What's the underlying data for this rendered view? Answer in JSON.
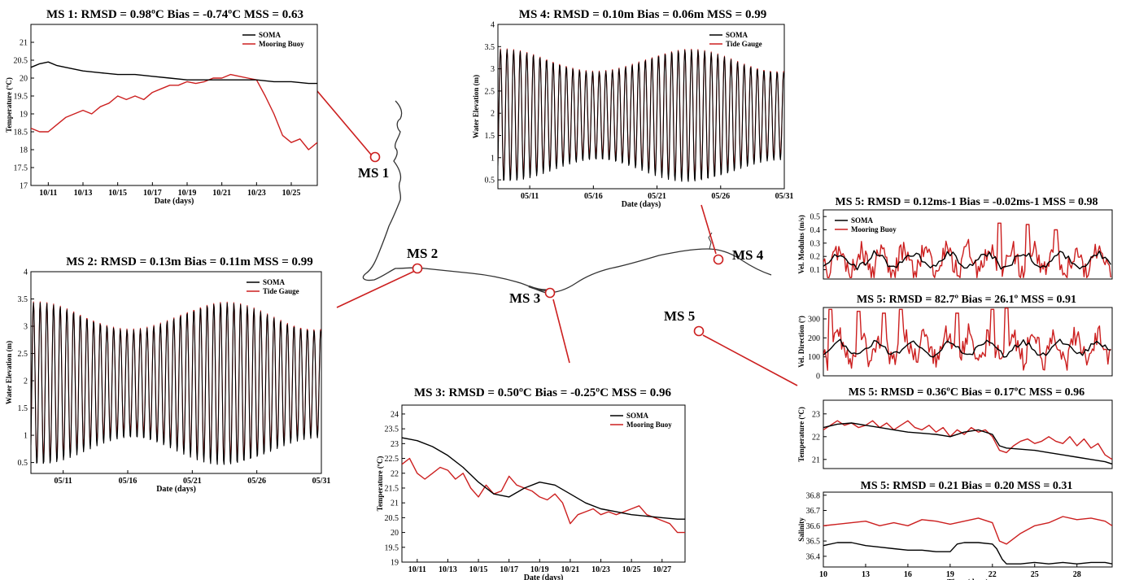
{
  "colors": {
    "model": "#000000",
    "obs": "#cc1f1f",
    "marker": "#cc1f1f",
    "coast": "#333333"
  },
  "map": {
    "labels": [
      {
        "id": "ms1",
        "text": "MS 1"
      },
      {
        "id": "ms2",
        "text": "MS 2"
      },
      {
        "id": "ms3",
        "text": "MS 3"
      },
      {
        "id": "ms4",
        "text": "MS 4"
      },
      {
        "id": "ms5",
        "text": "MS 5"
      }
    ]
  },
  "chart_data": [
    {
      "id": "ms1",
      "type": "line",
      "title": "MS 1:  RMSD = 0.98ºC  Bias = -0.74ºC   MSS = 0.63",
      "xlabel": "Date (days)",
      "ylabel": "Temperature (ºC)",
      "xlim": [
        10,
        26.5
      ],
      "ylim": [
        17,
        21.5
      ],
      "xticks": [
        11,
        13,
        15,
        17,
        19,
        21,
        23,
        25
      ],
      "xticklabels": [
        "10/11",
        "10/13",
        "10/15",
        "10/17",
        "10/19",
        "10/21",
        "10/23",
        "10/25"
      ],
      "yticks": [
        17,
        17.5,
        18,
        18.5,
        19,
        19.5,
        20,
        20.5,
        21
      ],
      "legend": "top-right",
      "series": [
        {
          "name": "SOMA",
          "role": "model",
          "x": [
            10,
            10.5,
            11,
            11.5,
            12,
            13,
            14,
            15,
            16,
            17,
            18,
            19,
            20,
            21,
            22,
            23,
            24,
            25,
            26,
            26.5
          ],
          "y": [
            20.3,
            20.4,
            20.45,
            20.35,
            20.3,
            20.2,
            20.15,
            20.1,
            20.1,
            20.05,
            20.0,
            19.95,
            19.95,
            19.95,
            19.95,
            19.95,
            19.9,
            19.9,
            19.85,
            19.85
          ]
        },
        {
          "name": "Mooring Buoy",
          "role": "obs",
          "x": [
            10,
            10.5,
            11,
            11.5,
            12,
            12.5,
            13,
            13.5,
            14,
            14.5,
            15,
            15.5,
            16,
            16.5,
            17,
            17.5,
            18,
            18.5,
            19,
            19.5,
            20,
            20.5,
            21,
            21.5,
            22,
            22.5,
            23,
            23.5,
            24,
            24.5,
            25,
            25.5,
            26,
            26.5
          ],
          "y": [
            18.6,
            18.5,
            18.5,
            18.7,
            18.9,
            19.0,
            19.1,
            19.0,
            19.2,
            19.3,
            19.5,
            19.4,
            19.5,
            19.4,
            19.6,
            19.7,
            19.8,
            19.8,
            19.9,
            19.85,
            19.9,
            20.0,
            20.0,
            20.1,
            20.05,
            20.0,
            19.95,
            19.5,
            19.0,
            18.4,
            18.2,
            18.3,
            18.0,
            18.2
          ]
        }
      ]
    },
    {
      "id": "ms4",
      "type": "line",
      "title": "MS 4:  RMSD = 0.10m  Bias = 0.06m    MSS = 0.99",
      "xlabel": "Date (days)",
      "ylabel": "Water Elevation (m)",
      "xlim": [
        8.5,
        31
      ],
      "ylim": [
        0.3,
        4
      ],
      "xticks": [
        11,
        16,
        21,
        26,
        31
      ],
      "xticklabels": [
        "05/11",
        "05/16",
        "05/21",
        "05/26",
        "05/31"
      ],
      "yticks": [
        0.5,
        1,
        1.5,
        2,
        2.5,
        3,
        3.5,
        4
      ],
      "legend": "top-right",
      "tide": {
        "mean": 2.0,
        "amp_max": 1.45,
        "amp_min": 0.95,
        "spring": [
          9,
          23
        ],
        "period_days": 0.5175
      },
      "series": [
        {
          "name": "SOMA",
          "role": "model"
        },
        {
          "name": "Tide Gauge",
          "role": "obs"
        }
      ]
    },
    {
      "id": "ms2",
      "type": "line",
      "title": "MS 2:  RMSD = 0.13m   Bias = 0.11m   MSS = 0.99",
      "xlabel": "Date (days)",
      "ylabel": "Water Elevation (m)",
      "xlim": [
        8.5,
        31
      ],
      "ylim": [
        0.3,
        4
      ],
      "xticks": [
        11,
        16,
        21,
        26,
        31
      ],
      "xticklabels": [
        "05/11",
        "05/16",
        "05/21",
        "05/26",
        "05/31"
      ],
      "yticks": [
        0.5,
        1,
        1.5,
        2,
        2.5,
        3,
        3.5,
        4
      ],
      "legend": "top-right",
      "tide": {
        "mean": 2.0,
        "amp_max": 1.45,
        "amp_min": 0.95,
        "spring": [
          9,
          23
        ],
        "period_days": 0.5175
      },
      "series": [
        {
          "name": "SOMA",
          "role": "model"
        },
        {
          "name": "Tide Gauge",
          "role": "obs"
        }
      ]
    },
    {
      "id": "ms3",
      "type": "line",
      "title": "MS 3:  RMSD = 0.50ºC  Bias = -0.25ºC   MSS = 0.96",
      "xlabel": "Date (days)",
      "ylabel": "Temperature (ºC)",
      "xlim": [
        10,
        28.5
      ],
      "ylim": [
        19,
        24.3
      ],
      "xticks": [
        11,
        13,
        15,
        17,
        19,
        21,
        23,
        25,
        27
      ],
      "xticklabels": [
        "10/11",
        "10/13",
        "10/15",
        "10/17",
        "10/19",
        "10/21",
        "10/23",
        "10/25",
        "10/27"
      ],
      "yticks": [
        19,
        19.5,
        20,
        20.5,
        21,
        21.5,
        22,
        22.5,
        23,
        23.5,
        24
      ],
      "legend": "top-right",
      "series": [
        {
          "name": "SOMA",
          "role": "model",
          "x": [
            10,
            11,
            12,
            13,
            14,
            15,
            16,
            17,
            18,
            19,
            20,
            21,
            22,
            23,
            24,
            25,
            26,
            27,
            28,
            28.5
          ],
          "y": [
            23.2,
            23.1,
            22.9,
            22.6,
            22.2,
            21.7,
            21.3,
            21.2,
            21.5,
            21.7,
            21.6,
            21.3,
            21.0,
            20.8,
            20.7,
            20.6,
            20.55,
            20.5,
            20.45,
            20.45
          ]
        },
        {
          "name": "Mooring Buoy",
          "role": "obs",
          "x": [
            10,
            10.5,
            11,
            11.5,
            12,
            12.5,
            13,
            13.5,
            14,
            14.5,
            15,
            15.5,
            16,
            16.5,
            17,
            17.5,
            18,
            18.5,
            19,
            19.5,
            20,
            20.5,
            21,
            21.5,
            22,
            22.5,
            23,
            23.5,
            24,
            24.5,
            25,
            25.5,
            26,
            26.5,
            27,
            27.5,
            28,
            28.5
          ],
          "y": [
            22.3,
            22.5,
            22.0,
            21.8,
            22.0,
            22.2,
            22.1,
            21.8,
            22.0,
            21.5,
            21.2,
            21.6,
            21.3,
            21.4,
            21.9,
            21.6,
            21.5,
            21.4,
            21.2,
            21.1,
            21.3,
            21.0,
            20.3,
            20.6,
            20.7,
            20.8,
            20.6,
            20.7,
            20.6,
            20.7,
            20.8,
            20.9,
            20.6,
            20.5,
            20.4,
            20.3,
            20.0,
            20.0
          ]
        }
      ]
    },
    {
      "id": "ms5a",
      "type": "line",
      "title": "MS 5: RMSD = 0.12ms-1  Bias = -0.02ms-1  MSS = 0.98",
      "xlabel": "",
      "ylabel": "Vel. Modulus (m/s)",
      "xlim": [
        10,
        30.5
      ],
      "ylim": [
        0.03,
        0.55
      ],
      "xticks": [],
      "xticklabels": [],
      "yticks": [
        0.1,
        0.2,
        0.3,
        0.4,
        0.5
      ],
      "legend": "top-left",
      "noisy": {
        "model_mean": 0.17,
        "model_amp": 0.09,
        "obs_mean": 0.17,
        "obs_amp": 0.14,
        "peaks": [
          [
            22.5,
            0.45
          ],
          [
            24.5,
            0.44
          ],
          [
            26.5,
            0.4
          ]
        ]
      },
      "series": [
        {
          "name": "SOMA",
          "role": "model"
        },
        {
          "name": "Mooring Buoy",
          "role": "obs"
        }
      ]
    },
    {
      "id": "ms5b",
      "type": "line",
      "title": "MS 5:  RMSD = 82.7º  Bias = 26.1º    MSS = 0.91",
      "xlabel": "",
      "ylabel": "Vel. Direction (º)",
      "xlim": [
        10,
        30.5
      ],
      "ylim": [
        0,
        360
      ],
      "xticks": [],
      "xticklabels": [],
      "yticks": [
        0,
        100,
        200,
        300
      ],
      "legend": "",
      "noisy": {
        "model_mean": 145,
        "model_amp": 55,
        "obs_mean": 150,
        "obs_amp": 110,
        "peaks": [
          [
            10.5,
            350
          ],
          [
            12.5,
            340
          ],
          [
            14.3,
            330
          ],
          [
            15.5,
            350
          ],
          [
            19.5,
            330
          ],
          [
            22,
            350
          ],
          [
            23,
            360
          ]
        ]
      },
      "series": [
        {
          "name": "SOMA",
          "role": "model"
        },
        {
          "name": "Mooring Buoy",
          "role": "obs"
        }
      ]
    },
    {
      "id": "ms5c",
      "type": "line",
      "title": "MS 5:  RMSD = 0.36ºC  Bias = 0.17ºC   MSS = 0.96",
      "xlabel": "",
      "ylabel": "Temperature (ºC)",
      "xlim": [
        10,
        30.5
      ],
      "ylim": [
        20.6,
        23.6
      ],
      "xticks": [],
      "xticklabels": [],
      "yticks": [
        21,
        22,
        23
      ],
      "legend": "",
      "series": [
        {
          "name": "SOMA",
          "role": "model",
          "x": [
            10,
            11,
            12,
            13,
            14,
            15,
            16,
            17,
            18,
            19,
            20,
            21,
            22,
            22.5,
            23,
            24,
            25,
            26,
            27,
            28,
            29,
            30,
            30.5
          ],
          "y": [
            22.4,
            22.55,
            22.6,
            22.5,
            22.4,
            22.3,
            22.2,
            22.15,
            22.1,
            22.0,
            22.2,
            22.3,
            22.1,
            21.6,
            21.5,
            21.45,
            21.4,
            21.3,
            21.2,
            21.1,
            21.0,
            20.9,
            20.8
          ]
        },
        {
          "name": "Mooring Buoy",
          "role": "obs",
          "x": [
            10,
            10.5,
            11,
            11.5,
            12,
            12.5,
            13,
            13.5,
            14,
            14.5,
            15,
            15.5,
            16,
            16.5,
            17,
            17.5,
            18,
            18.5,
            19,
            19.5,
            20,
            20.5,
            21,
            21.5,
            22,
            22.5,
            23,
            23.5,
            24,
            24.5,
            25,
            25.5,
            26,
            26.5,
            27,
            27.5,
            28,
            28.5,
            29,
            29.5,
            30,
            30.5
          ],
          "y": [
            22.3,
            22.5,
            22.7,
            22.5,
            22.6,
            22.4,
            22.5,
            22.7,
            22.4,
            22.6,
            22.3,
            22.5,
            22.7,
            22.4,
            22.3,
            22.5,
            22.2,
            22.4,
            22.0,
            22.3,
            22.1,
            22.4,
            22.2,
            22.3,
            22.0,
            21.4,
            21.3,
            21.6,
            21.8,
            21.9,
            21.7,
            21.8,
            22.0,
            21.8,
            21.7,
            22.0,
            21.6,
            21.9,
            21.5,
            21.7,
            21.2,
            21.0
          ]
        }
      ]
    },
    {
      "id": "ms5d",
      "type": "line",
      "title": "MS 5:  RMSD = 0.21  Bias = 0.20  MSS = 0.31",
      "xlabel": "Time (days)",
      "ylabel": "Salinity",
      "xlim": [
        10,
        30.5
      ],
      "ylim": [
        36.33,
        36.82
      ],
      "xticks": [
        10,
        13,
        16,
        19,
        22,
        25,
        28
      ],
      "xticklabels": [
        "10",
        "13",
        "16",
        "19",
        "22",
        "25",
        "28"
      ],
      "yticks": [
        36.4,
        36.5,
        36.6,
        36.7,
        36.8
      ],
      "legend": "",
      "series": [
        {
          "name": "SOMA",
          "role": "model",
          "x": [
            10,
            11,
            12,
            13,
            14,
            15,
            16,
            17,
            18,
            19,
            19.5,
            20,
            21,
            22,
            22.3,
            22.7,
            23,
            24,
            25,
            26,
            27,
            28,
            29,
            30,
            30.5
          ],
          "y": [
            36.47,
            36.49,
            36.49,
            36.47,
            36.46,
            36.45,
            36.44,
            36.44,
            36.43,
            36.43,
            36.48,
            36.49,
            36.49,
            36.48,
            36.45,
            36.38,
            36.35,
            36.35,
            36.36,
            36.35,
            36.36,
            36.35,
            36.36,
            36.36,
            36.35
          ]
        },
        {
          "name": "Mooring Buoy",
          "role": "obs",
          "x": [
            10,
            11,
            12,
            13,
            14,
            15,
            16,
            17,
            18,
            19,
            20,
            21,
            22,
            22.5,
            23,
            24,
            25,
            26,
            27,
            28,
            29,
            30,
            30.5
          ],
          "y": [
            36.6,
            36.61,
            36.62,
            36.63,
            36.6,
            36.62,
            36.6,
            36.64,
            36.63,
            36.61,
            36.63,
            36.65,
            36.62,
            36.5,
            36.48,
            36.55,
            36.6,
            36.62,
            36.66,
            36.64,
            36.65,
            36.63,
            36.6
          ]
        }
      ]
    }
  ]
}
